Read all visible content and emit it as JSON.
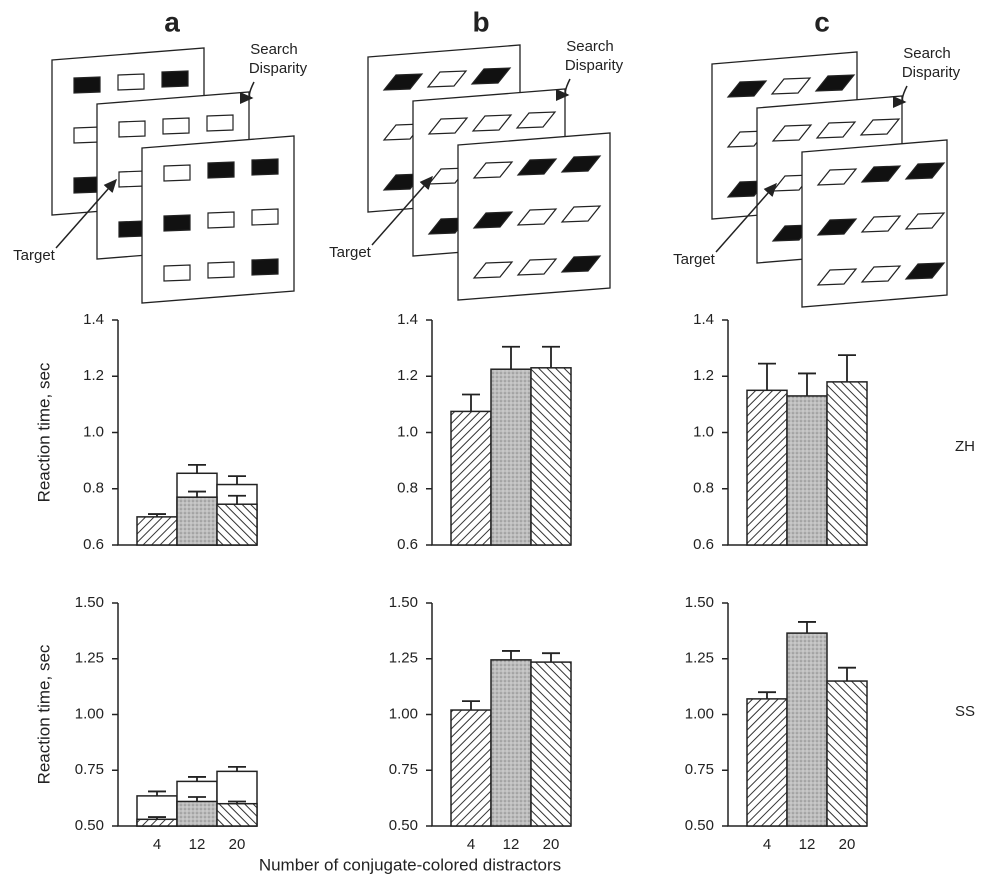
{
  "panels": [
    {
      "letter": "a",
      "search_label": [
        "Search",
        "Disparity"
      ],
      "target_label": "Target"
    },
    {
      "letter": "b",
      "search_label": [
        "Search",
        "Disparity"
      ],
      "target_label": "Target"
    },
    {
      "letter": "c",
      "search_label": [
        "Search",
        "Disparity"
      ],
      "target_label": "Target"
    }
  ],
  "subjects": [
    "ZH",
    "SS"
  ],
  "x_axis_label": "Number of conjugate-colored distractors",
  "chart_data": [
    {
      "type": "bar",
      "ylabel": "Reaction time, sec",
      "categories": [
        null,
        null,
        null
      ],
      "ylim": [
        0.6,
        1.4
      ],
      "yticks": [
        0.6,
        0.8,
        {
          "value": 1,
          "label": "1.0"
        },
        1.2,
        1.4
      ],
      "series": [
        {
          "color": "#ffffff",
          "values": [
            null,
            0.855,
            0.815
          ],
          "errors": [
            null,
            0.03,
            0.03
          ]
        },
        {
          "values": [
            0.7,
            0.77,
            0.745
          ],
          "errors": [
            0.01,
            0.02,
            0.03
          ]
        }
      ]
    },
    {
      "type": "bar",
      "categories": [
        null,
        null,
        null
      ],
      "ylim": [
        0.6,
        1.4
      ],
      "yticks": [
        0.6,
        0.8,
        {
          "value": 1,
          "label": "1.0"
        },
        1.2,
        1.4
      ],
      "series": [
        {
          "values": [
            1.075,
            1.225,
            1.23
          ],
          "errors": [
            0.06,
            0.08,
            0.075
          ]
        }
      ]
    },
    {
      "type": "bar",
      "categories": [
        null,
        null,
        null
      ],
      "ylim": [
        0.6,
        1.4
      ],
      "yticks": [
        0.6,
        0.8,
        {
          "value": 1,
          "label": "1.0"
        },
        1.2,
        1.4
      ],
      "series": [
        {
          "values": [
            1.15,
            1.13,
            1.18
          ],
          "errors": [
            0.095,
            0.08,
            0.095
          ]
        }
      ]
    },
    {
      "type": "bar",
      "ylabel": "Reaction time, sec",
      "categories": [
        "4",
        "12",
        "20"
      ],
      "ylim": [
        0.5,
        1.5
      ],
      "yticks": [
        {
          "value": 0.5,
          "label": "0.50"
        },
        0.75,
        {
          "value": 1,
          "label": "1.00"
        },
        1.25,
        {
          "value": 1.5,
          "label": "1.50"
        }
      ],
      "series": [
        {
          "color": "#ffffff",
          "values": [
            0.635,
            0.7,
            0.745
          ],
          "errors": [
            0.02,
            0.02,
            0.02
          ]
        },
        {
          "values": [
            0.53,
            0.61,
            0.6
          ],
          "errors": [
            0.01,
            0.02,
            0.01
          ]
        }
      ]
    },
    {
      "type": "bar",
      "categories": [
        "4",
        "12",
        "20"
      ],
      "ylim": [
        0.5,
        1.5
      ],
      "yticks": [
        {
          "value": 0.5,
          "label": "0.50"
        },
        0.75,
        {
          "value": 1,
          "label": "1.00"
        },
        1.25,
        {
          "value": 1.5,
          "label": "1.50"
        }
      ],
      "series": [
        {
          "values": [
            1.02,
            1.245,
            1.235
          ],
          "errors": [
            0.04,
            0.04,
            0.04
          ]
        }
      ]
    },
    {
      "type": "bar",
      "categories": [
        "4",
        "12",
        "20"
      ],
      "ylim": [
        0.5,
        1.5
      ],
      "yticks": [
        {
          "value": 0.5,
          "label": "0.50"
        },
        0.75,
        {
          "value": 1,
          "label": "1.00"
        },
        1.25,
        {
          "value": 1.5,
          "label": "1.50"
        }
      ],
      "series": [
        {
          "values": [
            1.07,
            1.365,
            1.15
          ],
          "errors": [
            0.03,
            0.05,
            0.06
          ]
        }
      ]
    }
  ]
}
